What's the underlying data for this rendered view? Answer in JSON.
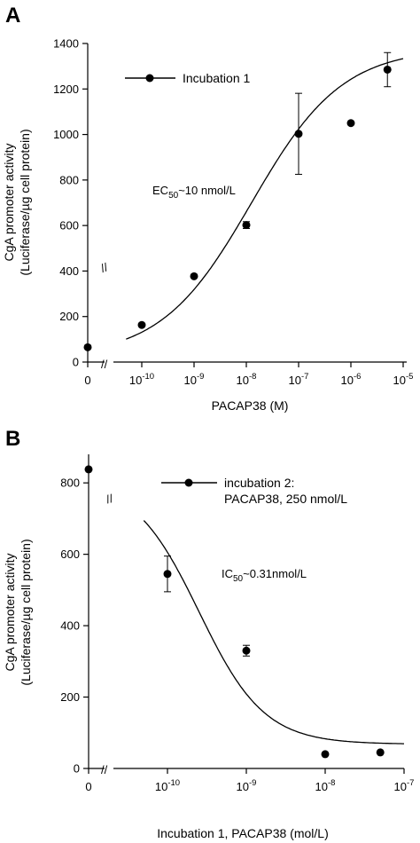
{
  "chart_data": [
    {
      "panel": "A",
      "type": "scatter",
      "x_scale": "log",
      "xlabel": "PACAP38 (M)",
      "ylabel": [
        "CgA promoter activity",
        "(Luciferase/µg cell protein)"
      ],
      "ylim": [
        0,
        1400
      ],
      "yticks": [
        0,
        200,
        400,
        600,
        800,
        1000,
        1200,
        1400
      ],
      "xticks": [
        {
          "base": "0",
          "exp": ""
        },
        {
          "base": "10",
          "exp": "-10"
        },
        {
          "base": "10",
          "exp": "-9"
        },
        {
          "base": "10",
          "exp": "-8"
        },
        {
          "base": "10",
          "exp": "-7"
        },
        {
          "base": "10",
          "exp": "-6"
        },
        {
          "base": "10",
          "exp": "-5"
        }
      ],
      "series": [
        {
          "name": "Incubation 1",
          "points": [
            {
              "x": "0",
              "y": 65
            },
            {
              "x": 1e-10,
              "y": 163
            },
            {
              "x": 1e-09,
              "y": 377
            },
            {
              "x": 1e-08,
              "y": 602,
              "err": 15
            },
            {
              "x": 1e-07,
              "y": 1003,
              "err": 178
            },
            {
              "x": 1e-06,
              "y": 1050
            },
            {
              "x": 5e-06,
              "y": 1285,
              "err": 75
            }
          ]
        }
      ],
      "fit_curve": {
        "bottom": 20,
        "top": 1380,
        "log_ec50": -7.9,
        "hill": 0.5
      },
      "annotation": {
        "pre": "EC",
        "sub": "50",
        "post": "~10 nmol/L"
      }
    },
    {
      "panel": "B",
      "type": "scatter",
      "x_scale": "log",
      "xlabel": "Incubation 1, PACAP38 (mol/L)",
      "ylabel": [
        "CgA promoter activity",
        "(Luciferase/µg cell protein)"
      ],
      "ylim": [
        0,
        880
      ],
      "yticks": [
        0,
        200,
        400,
        600,
        800
      ],
      "xticks": [
        {
          "base": "0",
          "exp": ""
        },
        {
          "base": "10",
          "exp": "-10"
        },
        {
          "base": "10",
          "exp": "-9"
        },
        {
          "base": "10",
          "exp": "-8"
        },
        {
          "base": "10",
          "exp": "-7"
        }
      ],
      "series": [
        {
          "name": "incubation 2:\nPACAP38, 250 nmol/L",
          "points": [
            {
              "x": "0",
              "y": 838
            },
            {
              "x": 1e-10,
              "y": 545,
              "err": 50
            },
            {
              "x": 1e-09,
              "y": 330,
              "err": 15
            },
            {
              "x": 1e-08,
              "y": 40
            },
            {
              "x": 5e-08,
              "y": 45
            }
          ]
        }
      ],
      "fit_curve": {
        "bottom": 68,
        "top": 810,
        "log_ic50": -9.6,
        "hill": 1.05
      },
      "annotation": {
        "pre": "IC",
        "sub": "50",
        "post": "~0.31nmol/L"
      }
    }
  ],
  "panels": {
    "a": {
      "letter": "A",
      "legend_label": "Incubation 1",
      "xlabel": "PACAP38 (M)",
      "ylabel_line1": "CgA promoter activity",
      "ylabel_line2": "(Luciferase/µg cell protein)",
      "annot_pre": "EC",
      "annot_sub": "50",
      "annot_post": "~10 nmol/L",
      "break_mark": "//"
    },
    "b": {
      "letter": "B",
      "legend_line1": "incubation 2:",
      "legend_line2": "PACAP38, 250 nmol/L",
      "xlabel": "Incubation 1, PACAP38 (mol/L)",
      "ylabel_line1": "CgA promoter activity",
      "ylabel_line2": "(Luciferase/µg cell protein)",
      "annot_pre": "IC",
      "annot_sub": "50",
      "annot_post": "~0.31nmol/L",
      "break_mark": "//"
    }
  }
}
